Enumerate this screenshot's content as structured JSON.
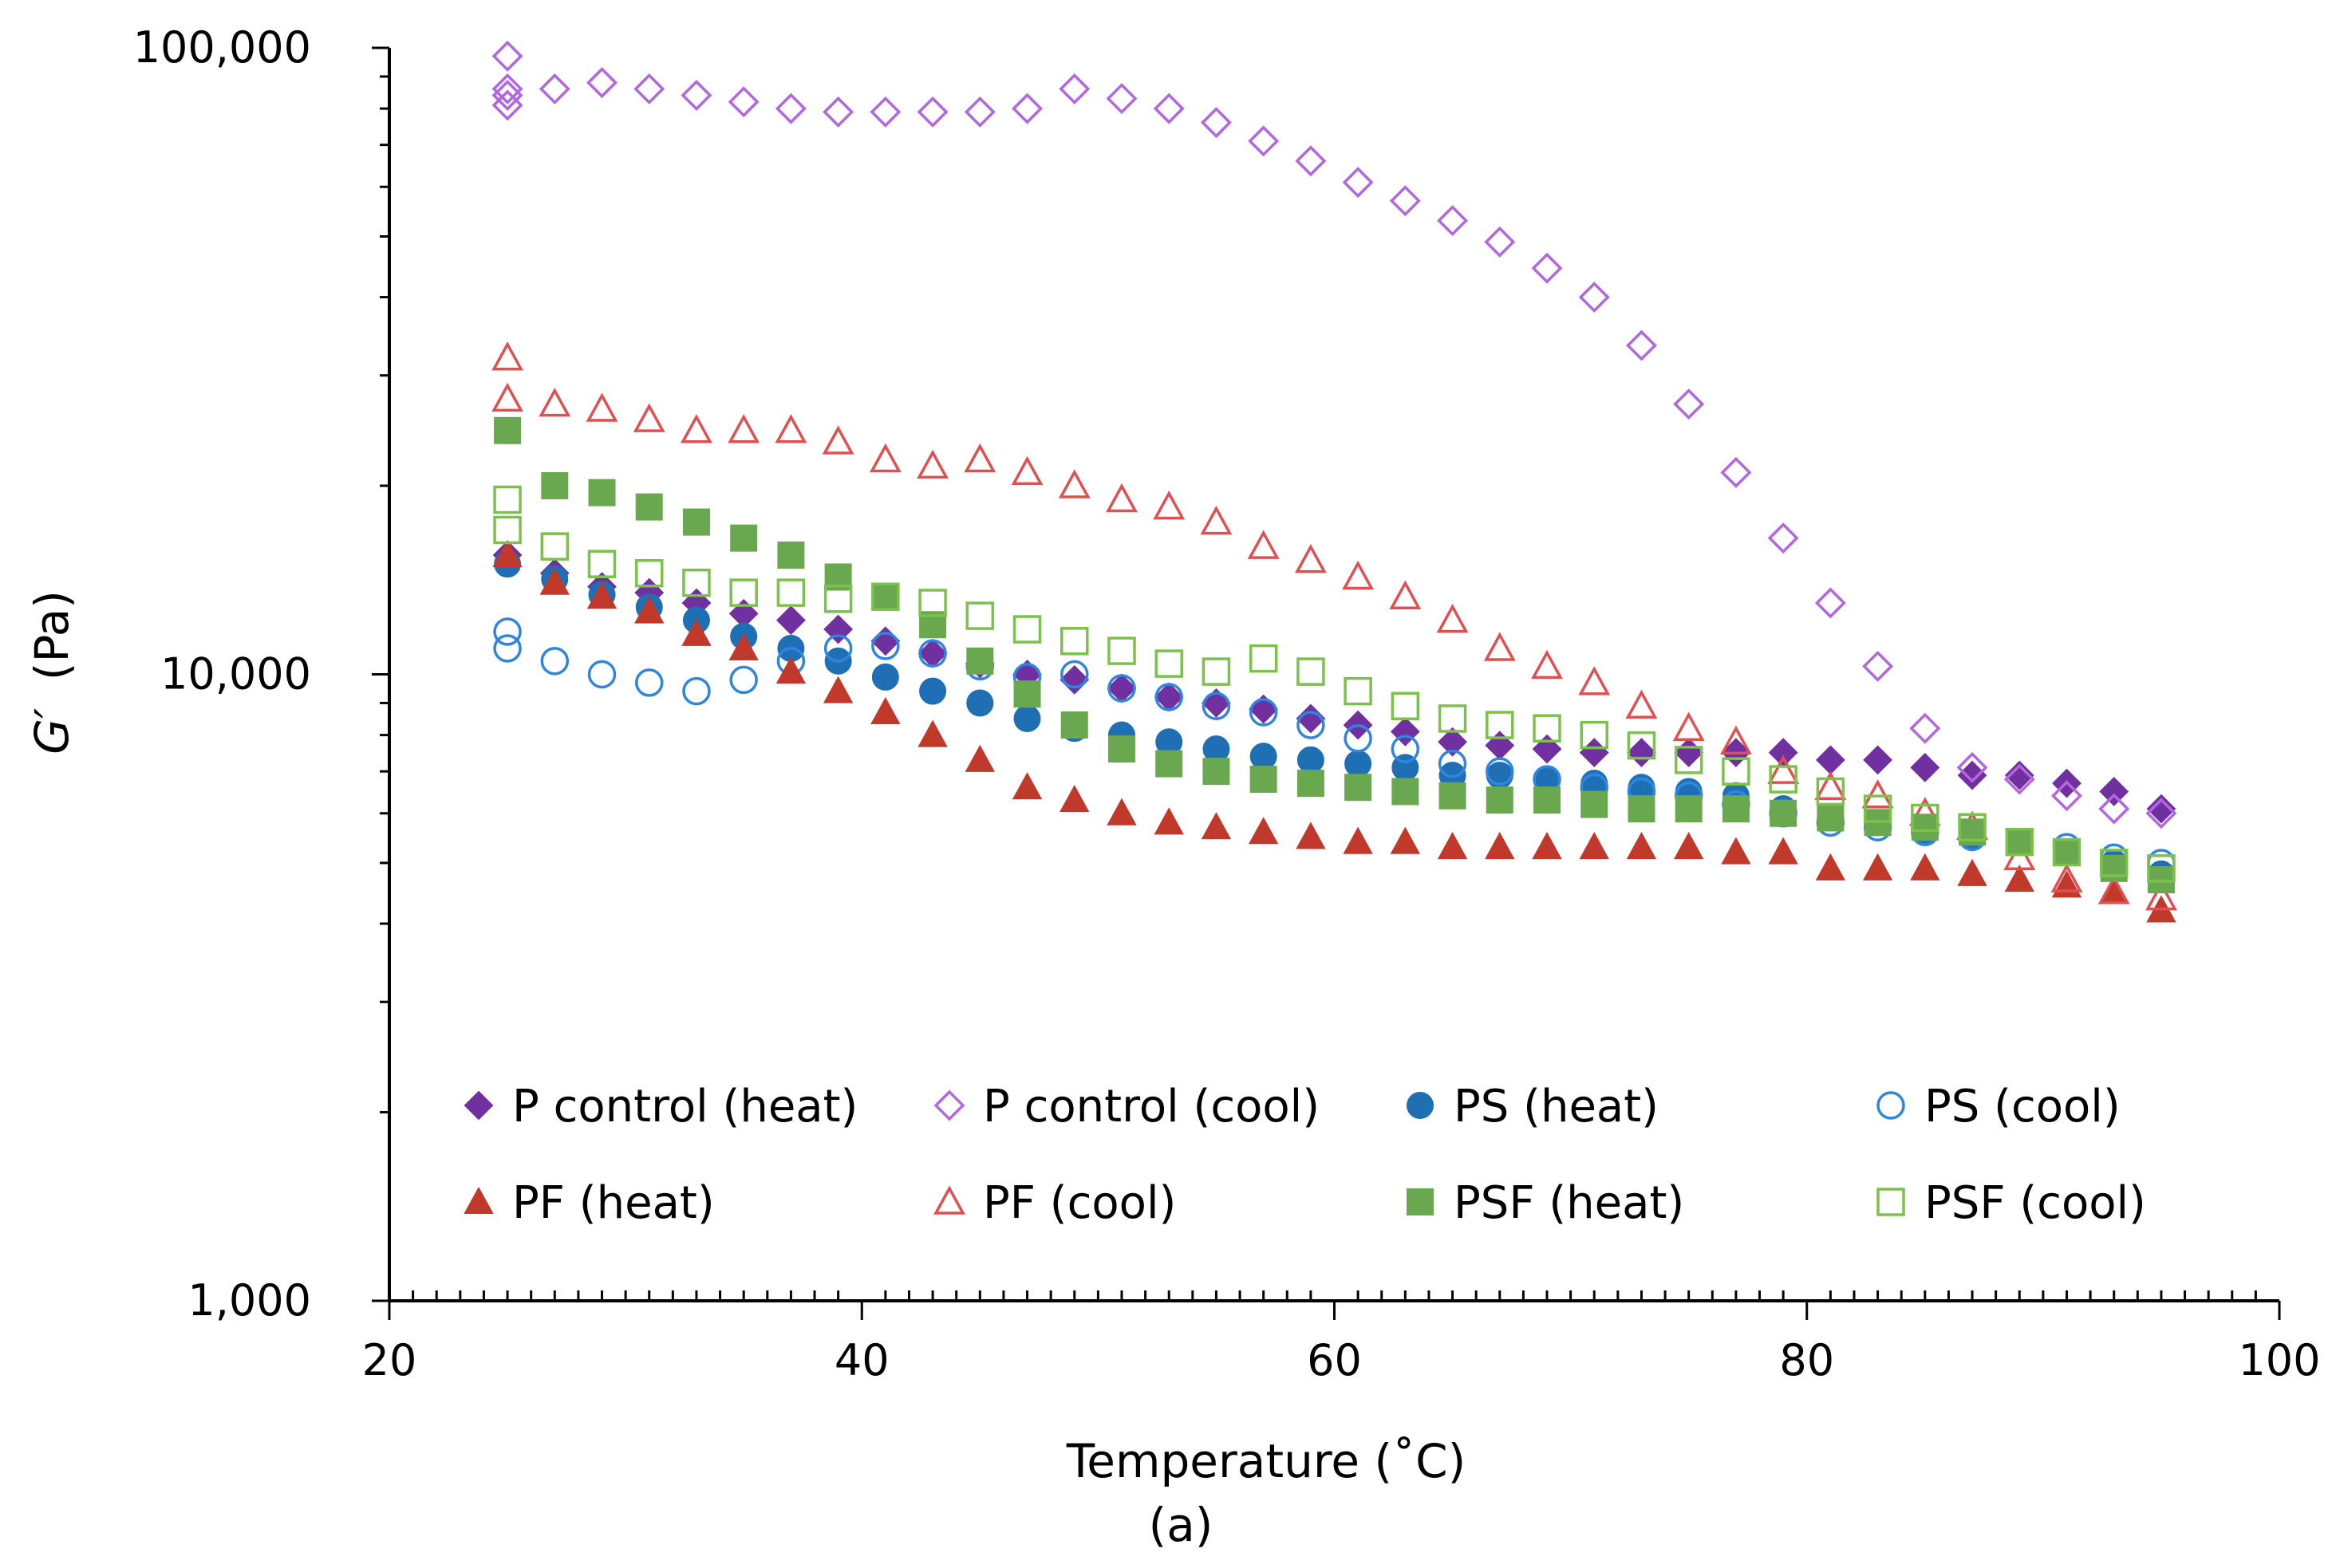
{
  "chart_data": {
    "type": "scatter",
    "title": "",
    "caption": "(a)",
    "xlabel": "Temperature (˚C)",
    "ylabel_symbol": "G′",
    "ylabel_unit": "(Pa)",
    "xlim": [
      20,
      100
    ],
    "ylim": [
      1000,
      100000
    ],
    "yscale": "log",
    "grid": false,
    "legend": "inside-bottom",
    "x_ticks": [
      {
        "value": 20,
        "label": "20"
      },
      {
        "value": 40,
        "label": "40"
      },
      {
        "value": 60,
        "label": "60"
      },
      {
        "value": 80,
        "label": "80"
      },
      {
        "value": 100,
        "label": "100"
      }
    ],
    "y_ticks": [
      {
        "value": 1000,
        "label": "1,000"
      },
      {
        "value": 10000,
        "label": "10,000"
      },
      {
        "value": 100000,
        "label": "100,000"
      }
    ],
    "series": [
      {
        "name": "P control (heat)",
        "marker": "diamond",
        "filled": true,
        "color": "#7030A0",
        "x": [
          25,
          27,
          29,
          31,
          33,
          35,
          37,
          39,
          41,
          43,
          45,
          47,
          49,
          51,
          53,
          55,
          57,
          59,
          61,
          63,
          65,
          67,
          69,
          71,
          73,
          75,
          77,
          79,
          81,
          83,
          85,
          87,
          89,
          91,
          93,
          95
        ],
        "y": [
          15500,
          14500,
          13800,
          13500,
          13000,
          12500,
          12200,
          11800,
          11300,
          10800,
          10400,
          10000,
          9800,
          9500,
          9200,
          9000,
          8800,
          8500,
          8300,
          8100,
          7800,
          7700,
          7600,
          7500,
          7500,
          7500,
          7500,
          7500,
          7300,
          7300,
          7100,
          6900,
          6900,
          6700,
          6500,
          6100
        ]
      },
      {
        "name": "P control (cool)",
        "marker": "diamond",
        "filled": false,
        "color": "#B266E0",
        "x": [
          25,
          25,
          25,
          25,
          27,
          29,
          31,
          33,
          35,
          37,
          39,
          41,
          43,
          45,
          47,
          49,
          51,
          53,
          55,
          57,
          59,
          61,
          63,
          65,
          67,
          69,
          71,
          73,
          75,
          77,
          79,
          81,
          83,
          85,
          87,
          89,
          91,
          93,
          95
        ],
        "y": [
          97000,
          86000,
          84000,
          81000,
          86000,
          88000,
          86000,
          84000,
          82000,
          80000,
          79000,
          79000,
          79000,
          79000,
          80000,
          86000,
          83000,
          80000,
          76000,
          71000,
          66000,
          61000,
          57000,
          53000,
          49000,
          44500,
          40000,
          33500,
          27000,
          21000,
          16500,
          13000,
          10300,
          8200,
          7100,
          6800,
          6400,
          6100,
          6000
        ]
      },
      {
        "name": "PS (heat)",
        "marker": "circle",
        "filled": true,
        "color": "#1F6FB5",
        "x": [
          25,
          27,
          29,
          31,
          33,
          35,
          37,
          39,
          41,
          43,
          45,
          47,
          49,
          51,
          53,
          55,
          57,
          59,
          61,
          63,
          65,
          67,
          69,
          71,
          73,
          75,
          77,
          79,
          81,
          83,
          85,
          87,
          89,
          91,
          93,
          95
        ],
        "y": [
          15000,
          14200,
          13400,
          12800,
          12200,
          11500,
          11000,
          10500,
          9900,
          9400,
          9000,
          8500,
          8200,
          8000,
          7800,
          7600,
          7400,
          7300,
          7200,
          7100,
          6900,
          6900,
          6800,
          6700,
          6600,
          6500,
          6400,
          6100,
          5900,
          5800,
          5600,
          5500,
          5400,
          5200,
          5000,
          4800
        ]
      },
      {
        "name": "PS (cool)",
        "marker": "circle",
        "filled": false,
        "color": "#2E86DE",
        "x": [
          25,
          25,
          27,
          29,
          31,
          33,
          35,
          37,
          39,
          41,
          43,
          45,
          47,
          49,
          51,
          53,
          55,
          57,
          59,
          61,
          63,
          65,
          67,
          69,
          71,
          73,
          75,
          77,
          79,
          81,
          83,
          85,
          87,
          89,
          91,
          93,
          95
        ],
        "y": [
          11700,
          11000,
          10500,
          10000,
          9700,
          9400,
          9800,
          10500,
          11000,
          11100,
          10800,
          10300,
          9900,
          10000,
          9500,
          9200,
          8900,
          8700,
          8300,
          7900,
          7600,
          7200,
          7000,
          6800,
          6600,
          6500,
          6400,
          6200,
          6000,
          5800,
          5700,
          5600,
          5500,
          5400,
          5300,
          5100,
          5000
        ]
      },
      {
        "name": "PF (heat)",
        "marker": "triangle",
        "filled": true,
        "color": "#C0392B",
        "x": [
          25,
          27,
          29,
          31,
          33,
          35,
          37,
          39,
          41,
          43,
          45,
          47,
          49,
          51,
          53,
          55,
          57,
          59,
          61,
          63,
          65,
          67,
          69,
          71,
          73,
          75,
          77,
          79,
          81,
          83,
          85,
          87,
          89,
          91,
          93,
          95
        ],
        "y": [
          15500,
          14000,
          13300,
          12600,
          11600,
          11000,
          10100,
          9400,
          8700,
          8000,
          7300,
          6600,
          6300,
          6000,
          5800,
          5700,
          5600,
          5500,
          5400,
          5400,
          5300,
          5300,
          5300,
          5300,
          5300,
          5300,
          5200,
          5200,
          4900,
          4900,
          4900,
          4800,
          4700,
          4600,
          4500,
          4200
        ]
      },
      {
        "name": "PF (cool)",
        "marker": "triangle",
        "filled": false,
        "color": "#E05050",
        "x": [
          25,
          25,
          27,
          29,
          31,
          33,
          35,
          37,
          39,
          41,
          43,
          45,
          47,
          49,
          51,
          53,
          55,
          57,
          59,
          61,
          63,
          65,
          67,
          69,
          71,
          73,
          75,
          77,
          79,
          81,
          83,
          85,
          87,
          89,
          91,
          93,
          95
        ],
        "y": [
          32000,
          27500,
          27000,
          26500,
          25500,
          24500,
          24500,
          24500,
          23500,
          22000,
          21500,
          22000,
          21000,
          20000,
          19000,
          18500,
          17500,
          16000,
          15200,
          14300,
          13300,
          12200,
          11000,
          10300,
          9700,
          8900,
          8200,
          7800,
          7000,
          6600,
          6400,
          6000,
          5700,
          5100,
          4700,
          4500,
          4400
        ]
      },
      {
        "name": "PSF (heat)",
        "marker": "square",
        "filled": true,
        "color": "#6AA84F",
        "x": [
          25,
          27,
          29,
          31,
          33,
          35,
          37,
          39,
          41,
          43,
          45,
          47,
          49,
          51,
          53,
          55,
          57,
          59,
          61,
          63,
          65,
          67,
          69,
          71,
          73,
          75,
          77,
          79,
          81,
          83,
          85,
          87,
          89,
          91,
          93,
          95
        ],
        "y": [
          24500,
          20000,
          19500,
          18500,
          17500,
          16500,
          15500,
          14300,
          13300,
          12000,
          10500,
          9300,
          8300,
          7600,
          7200,
          7000,
          6800,
          6700,
          6600,
          6500,
          6400,
          6300,
          6300,
          6200,
          6100,
          6100,
          6100,
          6000,
          5900,
          5800,
          5700,
          5600,
          5400,
          5200,
          4900,
          4700
        ]
      },
      {
        "name": "PSF (cool)",
        "marker": "square",
        "filled": false,
        "color": "#7CC24A",
        "x": [
          25,
          25,
          27,
          29,
          31,
          33,
          35,
          37,
          39,
          41,
          43,
          45,
          47,
          49,
          51,
          53,
          55,
          57,
          59,
          61,
          63,
          65,
          67,
          69,
          71,
          73,
          75,
          77,
          79,
          81,
          83,
          85,
          87,
          89,
          91,
          93,
          95
        ],
        "y": [
          19000,
          17000,
          16000,
          15000,
          14500,
          14000,
          13500,
          13500,
          13200,
          13300,
          13000,
          12400,
          11800,
          11300,
          10900,
          10400,
          10100,
          10600,
          10100,
          9400,
          8900,
          8500,
          8300,
          8200,
          8000,
          7700,
          7300,
          7000,
          6800,
          6500,
          6100,
          5900,
          5700,
          5400,
          5200,
          5000,
          4900
        ]
      }
    ]
  }
}
